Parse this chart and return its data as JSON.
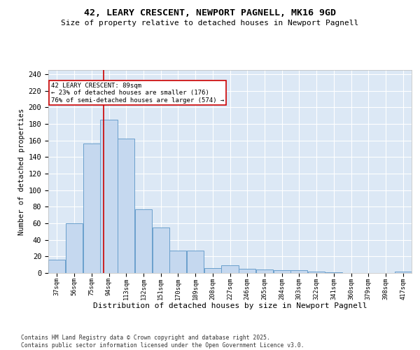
{
  "title": "42, LEARY CRESCENT, NEWPORT PAGNELL, MK16 9GD",
  "subtitle": "Size of property relative to detached houses in Newport Pagnell",
  "xlabel": "Distribution of detached houses by size in Newport Pagnell",
  "ylabel": "Number of detached properties",
  "footnote": "Contains HM Land Registry data © Crown copyright and database right 2025.\nContains public sector information licensed under the Open Government Licence v3.0.",
  "bar_color": "#c5d8ef",
  "bar_edge_color": "#6aa0cc",
  "background_color": "#dce8f5",
  "grid_color": "#ffffff",
  "fig_background": "#ffffff",
  "annotation_text": "42 LEARY CRESCENT: 89sqm\n← 23% of detached houses are smaller (176)\n76% of semi-detached houses are larger (574) →",
  "annotation_box_color": "#cc0000",
  "vline_x": 89,
  "vline_color": "#cc0000",
  "categories": [
    "37sqm",
    "56sqm",
    "75sqm",
    "94sqm",
    "113sqm",
    "132sqm",
    "151sqm",
    "170sqm",
    "189sqm",
    "208sqm",
    "227sqm",
    "246sqm",
    "265sqm",
    "284sqm",
    "303sqm",
    "322sqm",
    "341sqm",
    "360sqm",
    "379sqm",
    "398sqm",
    "417sqm"
  ],
  "bin_edges": [
    28,
    47,
    66,
    85,
    104,
    123,
    142,
    161,
    180,
    199,
    218,
    237,
    256,
    275,
    294,
    313,
    332,
    351,
    370,
    389,
    408,
    427
  ],
  "values": [
    16,
    60,
    156,
    185,
    162,
    77,
    55,
    27,
    27,
    6,
    9,
    5,
    4,
    3,
    3,
    2,
    1,
    0,
    0,
    0,
    2
  ],
  "ylim": [
    0,
    245
  ],
  "yticks": [
    0,
    20,
    40,
    60,
    80,
    100,
    120,
    140,
    160,
    180,
    200,
    220,
    240
  ]
}
